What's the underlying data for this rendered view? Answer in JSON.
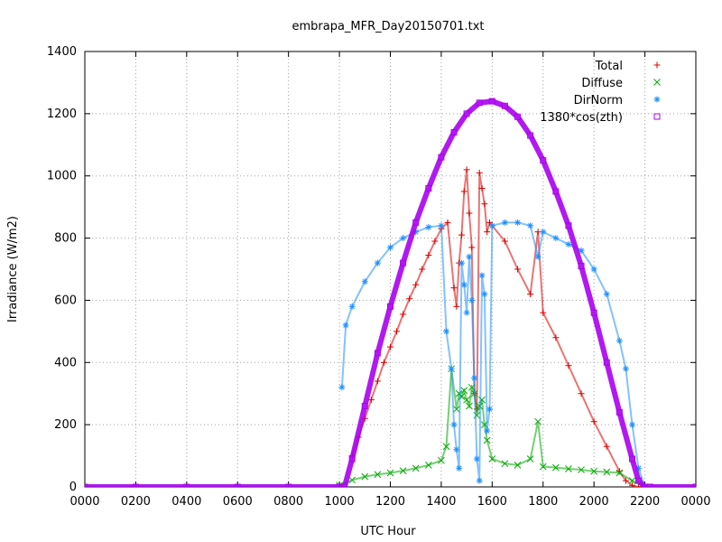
{
  "chart_data": {
    "type": "scatter",
    "title": "embrapa_MFR_Day20150701.txt",
    "xlabel": "UTC Hour",
    "ylabel": "Irradiance (W/m2)",
    "xlim": [
      0,
      24
    ],
    "ylim": [
      0,
      1400
    ],
    "x_ticks": [
      "0000",
      "0200",
      "0400",
      "0600",
      "0800",
      "1000",
      "1200",
      "1400",
      "1600",
      "1800",
      "2000",
      "2200",
      "0000"
    ],
    "y_ticks": [
      "0",
      "200",
      "400",
      "600",
      "800",
      "1000",
      "1200",
      "1400"
    ],
    "grid": true,
    "legend_position": "top-right",
    "series": [
      {
        "name": "Total",
        "color": "#dd0000",
        "marker": "plus",
        "x": [
          10.5,
          10.75,
          11.0,
          11.25,
          11.5,
          11.75,
          12.0,
          12.25,
          12.5,
          12.75,
          13.0,
          13.25,
          13.5,
          13.75,
          14.0,
          14.25,
          14.5,
          14.6,
          14.7,
          14.8,
          14.9,
          15.0,
          15.1,
          15.2,
          15.3,
          15.4,
          15.5,
          15.6,
          15.7,
          15.8,
          15.9,
          16.0,
          16.5,
          17.0,
          17.5,
          17.8,
          18.0,
          18.5,
          19.0,
          19.5,
          20.0,
          20.5,
          21.0,
          21.25,
          21.5,
          21.75,
          22.0
        ],
        "y": [
          100,
          160,
          220,
          280,
          340,
          400,
          450,
          500,
          555,
          605,
          650,
          700,
          745,
          790,
          830,
          850,
          640,
          580,
          720,
          810,
          950,
          1020,
          880,
          770,
          300,
          250,
          1010,
          960,
          910,
          820,
          850,
          840,
          790,
          700,
          620,
          820,
          560,
          480,
          390,
          300,
          210,
          130,
          50,
          20,
          5,
          0,
          0
        ]
      },
      {
        "name": "Diffuse",
        "color": "#00aa00",
        "marker": "x",
        "x": [
          10.0,
          10.5,
          11.0,
          11.5,
          12.0,
          12.5,
          13.0,
          13.5,
          14.0,
          14.2,
          14.4,
          14.6,
          14.7,
          14.8,
          14.9,
          15.0,
          15.1,
          15.2,
          15.3,
          15.4,
          15.5,
          15.6,
          15.7,
          15.8,
          16.0,
          16.5,
          17.0,
          17.5,
          17.8,
          18.0,
          18.5,
          19.0,
          19.5,
          20.0,
          20.5,
          21.0,
          21.5,
          22.0
        ],
        "y": [
          5,
          22,
          33,
          40,
          45,
          52,
          60,
          70,
          85,
          130,
          380,
          250,
          300,
          290,
          310,
          280,
          260,
          320,
          300,
          230,
          260,
          280,
          200,
          150,
          90,
          75,
          70,
          90,
          210,
          65,
          62,
          58,
          55,
          50,
          48,
          45,
          20,
          0
        ]
      },
      {
        "name": "DirNorm",
        "color": "#1e90ff",
        "marker": "star",
        "x": [
          10.1,
          10.25,
          10.5,
          11.0,
          11.5,
          12.0,
          12.5,
          13.0,
          13.5,
          14.0,
          14.2,
          14.4,
          14.5,
          14.6,
          14.7,
          14.8,
          14.9,
          15.0,
          15.1,
          15.2,
          15.3,
          15.4,
          15.5,
          15.6,
          15.7,
          15.8,
          15.9,
          16.0,
          16.5,
          17.0,
          17.5,
          17.8,
          18.0,
          18.5,
          19.0,
          19.5,
          20.0,
          20.5,
          21.0,
          21.25,
          21.5,
          21.75,
          22.0
        ],
        "y": [
          320,
          520,
          580,
          660,
          720,
          770,
          800,
          820,
          835,
          840,
          500,
          380,
          200,
          120,
          60,
          720,
          650,
          560,
          740,
          600,
          350,
          90,
          20,
          680,
          620,
          180,
          250,
          840,
          850,
          850,
          840,
          740,
          820,
          800,
          780,
          760,
          700,
          620,
          470,
          380,
          200,
          60,
          0
        ]
      },
      {
        "name": "1380*cos(zth)",
        "color": "#aa00ee",
        "marker": "square",
        "x": [
          0,
          2,
          4,
          6,
          8,
          10,
          10.2,
          10.5,
          11,
          11.5,
          12,
          12.5,
          13,
          13.5,
          14,
          14.5,
          15,
          15.5,
          16,
          16.5,
          17,
          17.5,
          18,
          18.5,
          19,
          19.5,
          20,
          20.5,
          21,
          21.5,
          21.75,
          22,
          22.2,
          24
        ],
        "y": [
          0,
          0,
          0,
          0,
          0,
          0,
          0,
          90,
          260,
          430,
          580,
          720,
          850,
          960,
          1060,
          1140,
          1200,
          1235,
          1240,
          1225,
          1190,
          1130,
          1050,
          950,
          840,
          710,
          560,
          400,
          240,
          90,
          20,
          0,
          0,
          0
        ]
      }
    ]
  }
}
